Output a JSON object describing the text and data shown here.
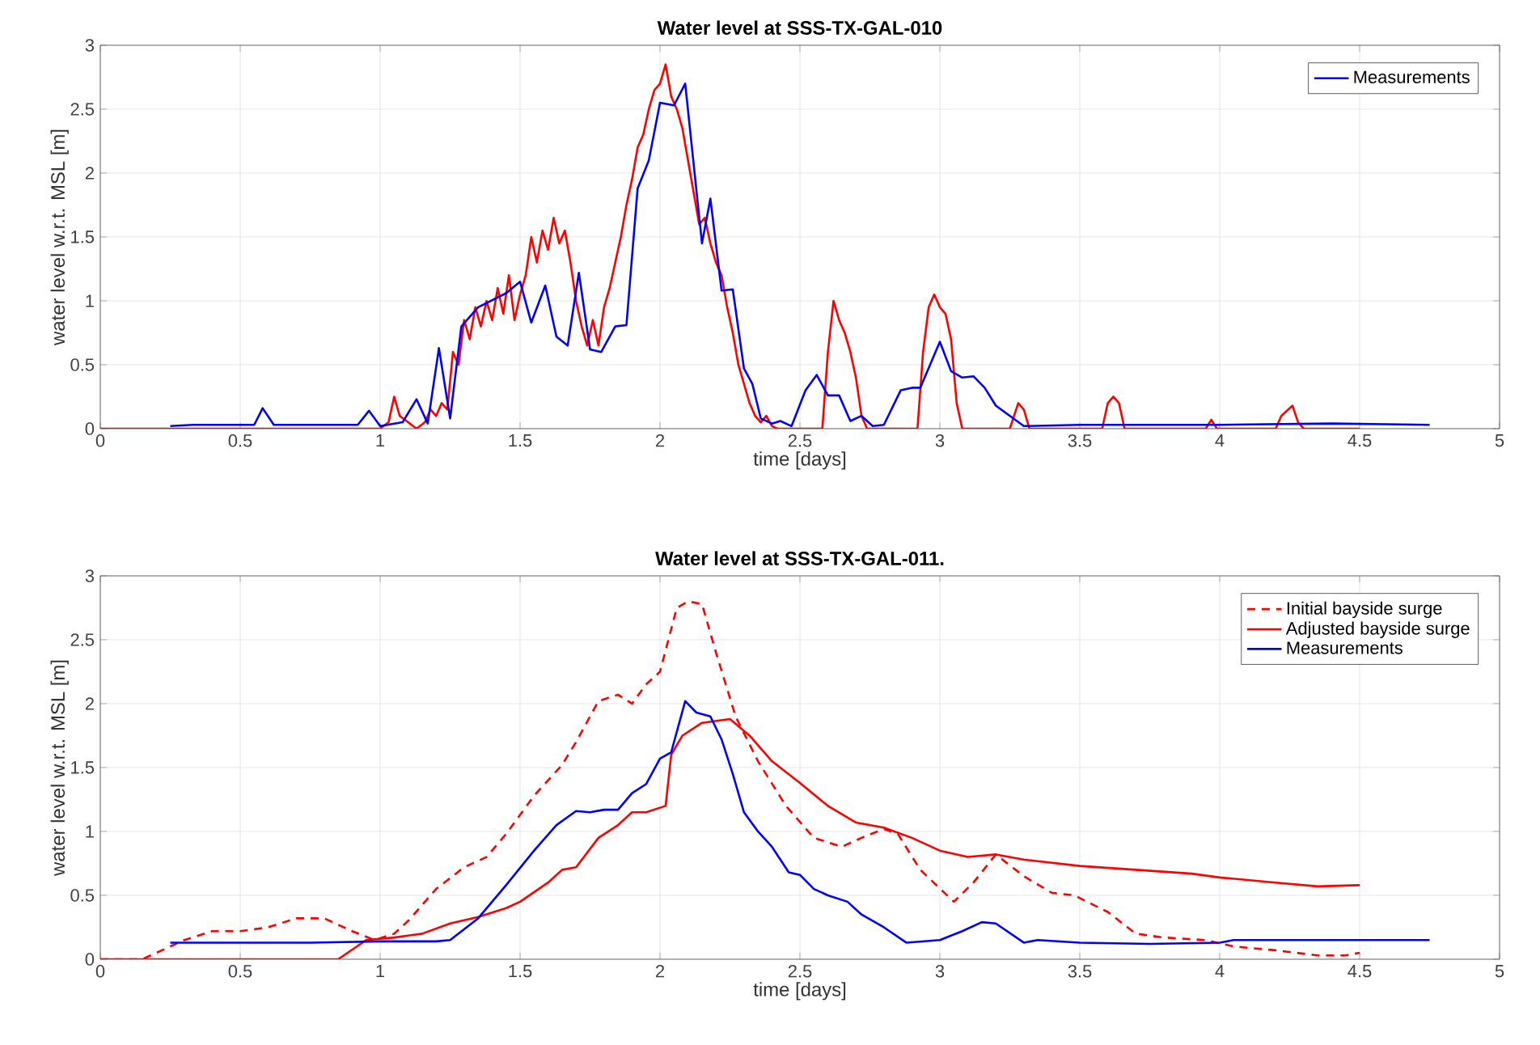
{
  "chart_data": [
    {
      "type": "line",
      "title": "Water level at SSS-TX-GAL-010",
      "xlabel": "time [days]",
      "ylabel": "water level w.r.t. MSL [m]",
      "xlim": [
        0,
        5
      ],
      "ylim": [
        0,
        3
      ],
      "xticks": [
        0,
        0.5,
        1,
        1.5,
        2,
        2.5,
        3,
        3.5,
        4,
        4.5,
        5
      ],
      "yticks": [
        0,
        0.5,
        1,
        1.5,
        2,
        2.5,
        3
      ],
      "grid": true,
      "legend": "top right",
      "line_style": "solid",
      "series": [
        {
          "color": "#ff0000",
          "x": [
            0,
            1.0,
            1.03,
            1.05,
            1.07,
            1.1,
            1.13,
            1.16,
            1.18,
            1.2,
            1.22,
            1.24,
            1.26,
            1.28,
            1.3,
            1.32,
            1.34,
            1.36,
            1.38,
            1.4,
            1.42,
            1.44,
            1.46,
            1.48,
            1.5,
            1.52,
            1.54,
            1.56,
            1.58,
            1.6,
            1.62,
            1.64,
            1.66,
            1.68,
            1.7,
            1.72,
            1.74,
            1.76,
            1.78,
            1.8,
            1.82,
            1.84,
            1.86,
            1.88,
            1.9,
            1.92,
            1.94,
            1.96,
            1.98,
            2.0,
            2.02,
            2.04,
            2.06,
            2.08,
            2.1,
            2.12,
            2.14,
            2.16,
            2.18,
            2.2,
            2.22,
            2.24,
            2.26,
            2.28,
            2.3,
            2.32,
            2.34,
            2.36,
            2.38,
            2.4,
            2.42,
            2.58,
            2.6,
            2.62,
            2.64,
            2.66,
            2.68,
            2.7,
            2.72,
            2.74,
            2.92,
            2.94,
            2.96,
            2.98,
            3.0,
            3.02,
            3.04,
            3.06,
            3.08,
            3.25,
            3.28,
            3.3,
            3.32,
            3.58,
            3.6,
            3.62,
            3.64,
            3.66,
            3.95,
            3.97,
            3.99,
            4.2,
            4.22,
            4.26,
            4.28,
            4.3,
            4.5
          ],
          "values": [
            0,
            0,
            0.05,
            0.25,
            0.1,
            0.05,
            0,
            0.05,
            0.15,
            0.1,
            0.2,
            0.15,
            0.6,
            0.5,
            0.85,
            0.7,
            0.95,
            0.8,
            1.0,
            0.85,
            1.1,
            0.9,
            1.2,
            0.85,
            1.05,
            1.2,
            1.5,
            1.3,
            1.55,
            1.4,
            1.65,
            1.45,
            1.55,
            1.3,
            1.0,
            0.8,
            0.65,
            0.85,
            0.65,
            0.95,
            1.1,
            1.3,
            1.5,
            1.75,
            1.95,
            2.2,
            2.3,
            2.5,
            2.65,
            2.7,
            2.85,
            2.6,
            2.5,
            2.35,
            2.1,
            1.85,
            1.6,
            1.65,
            1.45,
            1.3,
            1.2,
            0.95,
            0.75,
            0.5,
            0.35,
            0.2,
            0.1,
            0.05,
            0.1,
            0.02,
            0,
            0,
            0.6,
            1.0,
            0.85,
            0.75,
            0.6,
            0.4,
            0.1,
            0,
            0,
            0.6,
            0.95,
            1.05,
            0.95,
            0.9,
            0.7,
            0.2,
            0,
            0,
            0.2,
            0.15,
            0,
            0,
            0.2,
            0.25,
            0.2,
            0,
            0,
            0.07,
            0,
            0,
            0.1,
            0.18,
            0.05,
            0,
            0
          ]
        },
        {
          "name": "Measurements",
          "color": "#0000ff",
          "x": [
            0.25,
            0.33,
            0.55,
            0.58,
            0.62,
            0.92,
            0.96,
            1.0,
            1.08,
            1.13,
            1.17,
            1.21,
            1.25,
            1.29,
            1.35,
            1.45,
            1.5,
            1.54,
            1.59,
            1.63,
            1.67,
            1.71,
            1.75,
            1.79,
            1.84,
            1.88,
            1.92,
            1.96,
            2.0,
            2.05,
            2.09,
            2.15,
            2.18,
            2.22,
            2.26,
            2.3,
            2.33,
            2.36,
            2.4,
            2.43,
            2.47,
            2.52,
            2.56,
            2.6,
            2.64,
            2.68,
            2.72,
            2.76,
            2.8,
            2.86,
            2.9,
            2.93,
            3.0,
            3.04,
            3.08,
            3.12,
            3.16,
            3.2,
            3.3,
            3.5,
            4.0,
            4.4,
            4.75
          ],
          "values": [
            0.02,
            0.03,
            0.03,
            0.16,
            0.03,
            0.03,
            0.14,
            0.02,
            0.05,
            0.23,
            0.04,
            0.63,
            0.08,
            0.8,
            0.95,
            1.06,
            1.15,
            0.83,
            1.12,
            0.72,
            0.65,
            1.22,
            0.62,
            0.6,
            0.8,
            0.81,
            1.88,
            2.1,
            2.55,
            2.53,
            2.7,
            1.45,
            1.8,
            1.08,
            1.09,
            0.47,
            0.35,
            0.08,
            0.04,
            0.06,
            0.02,
            0.3,
            0.42,
            0.26,
            0.26,
            0.06,
            0.1,
            0.02,
            0.03,
            0.3,
            0.32,
            0.32,
            0.68,
            0.45,
            0.4,
            0.41,
            0.32,
            0.18,
            0.02,
            0.03,
            0.03,
            0.04,
            0.03
          ]
        }
      ]
    },
    {
      "type": "line",
      "title": "Water level at SSS-TX-GAL-011.",
      "xlabel": "time [days]",
      "ylabel": "water level w.r.t. MSL [m]",
      "xlim": [
        0,
        5
      ],
      "ylim": [
        0,
        3
      ],
      "xticks": [
        0,
        0.5,
        1,
        1.5,
        2,
        2.5,
        3,
        3.5,
        4,
        4.5,
        5
      ],
      "yticks": [
        0,
        0.5,
        1,
        1.5,
        2,
        2.5,
        3
      ],
      "grid": true,
      "legend": "top right",
      "line_style": "solid",
      "series": [
        {
          "name": "Initial bayside surge",
          "color": "#ff0000",
          "line_style": "dashed",
          "x": [
            0,
            0.15,
            0.3,
            0.4,
            0.5,
            0.6,
            0.7,
            0.8,
            0.9,
            0.98,
            1.05,
            1.1,
            1.2,
            1.3,
            1.38,
            1.45,
            1.55,
            1.65,
            1.7,
            1.78,
            1.85,
            1.9,
            1.95,
            2.0,
            2.06,
            2.1,
            2.15,
            2.2,
            2.27,
            2.35,
            2.45,
            2.55,
            2.65,
            2.72,
            2.8,
            2.85,
            2.93,
            3.05,
            3.12,
            3.2,
            3.3,
            3.4,
            3.48,
            3.6,
            3.7,
            3.8,
            3.95,
            4.05,
            4.2,
            4.35,
            4.45,
            4.5
          ],
          "values": [
            0,
            0,
            0.15,
            0.22,
            0.22,
            0.25,
            0.32,
            0.32,
            0.22,
            0.15,
            0.2,
            0.3,
            0.55,
            0.72,
            0.8,
            0.98,
            1.28,
            1.52,
            1.7,
            2.02,
            2.07,
            2.0,
            2.15,
            2.25,
            2.75,
            2.8,
            2.78,
            2.4,
            1.9,
            1.55,
            1.2,
            0.95,
            0.88,
            0.95,
            1.02,
            0.98,
            0.7,
            0.45,
            0.6,
            0.82,
            0.65,
            0.52,
            0.5,
            0.37,
            0.2,
            0.17,
            0.15,
            0.1,
            0.07,
            0.03,
            0.03,
            0.05
          ]
        },
        {
          "name": "Adjusted bayside surge",
          "color": "#ff0000",
          "x": [
            0,
            0.85,
            0.95,
            1.05,
            1.15,
            1.25,
            1.35,
            1.45,
            1.5,
            1.6,
            1.65,
            1.7,
            1.78,
            1.85,
            1.9,
            1.95,
            2.02,
            2.04,
            2.08,
            2.15,
            2.25,
            2.32,
            2.4,
            2.5,
            2.6,
            2.7,
            2.8,
            2.9,
            3.0,
            3.1,
            3.2,
            3.3,
            3.5,
            3.7,
            3.9,
            4.0,
            4.2,
            4.35,
            4.5
          ],
          "values": [
            0,
            0,
            0.15,
            0.17,
            0.2,
            0.28,
            0.33,
            0.4,
            0.45,
            0.6,
            0.7,
            0.72,
            0.95,
            1.05,
            1.15,
            1.15,
            1.2,
            1.6,
            1.75,
            1.85,
            1.88,
            1.75,
            1.55,
            1.38,
            1.2,
            1.07,
            1.03,
            0.95,
            0.85,
            0.8,
            0.82,
            0.78,
            0.73,
            0.7,
            0.67,
            0.64,
            0.6,
            0.57,
            0.58
          ]
        },
        {
          "name": "Measurements",
          "color": "#0000ff",
          "x": [
            0.25,
            0.5,
            0.75,
            1.0,
            1.2,
            1.25,
            1.35,
            1.45,
            1.55,
            1.63,
            1.7,
            1.75,
            1.8,
            1.85,
            1.9,
            1.95,
            2.0,
            2.04,
            2.09,
            2.13,
            2.18,
            2.22,
            2.26,
            2.3,
            2.35,
            2.4,
            2.46,
            2.5,
            2.55,
            2.6,
            2.67,
            2.72,
            2.8,
            2.88,
            3.0,
            3.08,
            3.15,
            3.2,
            3.3,
            3.35,
            3.5,
            3.75,
            4.0,
            4.05,
            4.3,
            4.75
          ],
          "values": [
            0.13,
            0.13,
            0.13,
            0.14,
            0.14,
            0.15,
            0.32,
            0.58,
            0.85,
            1.05,
            1.16,
            1.15,
            1.17,
            1.17,
            1.3,
            1.37,
            1.57,
            1.62,
            2.02,
            1.93,
            1.9,
            1.72,
            1.45,
            1.15,
            1.0,
            0.88,
            0.68,
            0.66,
            0.55,
            0.5,
            0.45,
            0.35,
            0.25,
            0.13,
            0.15,
            0.22,
            0.29,
            0.28,
            0.13,
            0.15,
            0.13,
            0.12,
            0.13,
            0.15,
            0.15,
            0.15
          ]
        }
      ]
    }
  ]
}
